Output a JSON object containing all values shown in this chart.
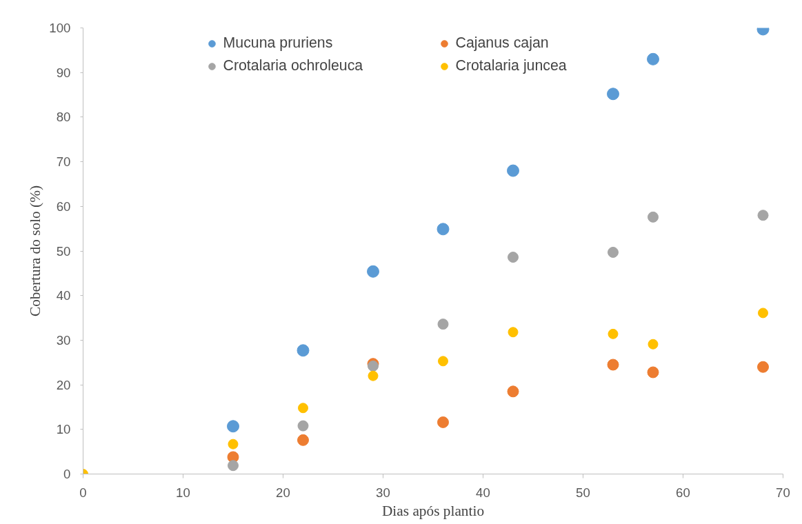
{
  "chart_data": {
    "type": "scatter",
    "xlabel": "Dias após plantio",
    "ylabel": "Cobertura do solo (%)",
    "x": [
      0,
      15,
      22,
      29,
      36,
      43,
      53,
      57,
      68
    ],
    "series": [
      {
        "name": "Mucuna pruriens",
        "color": "#5b9bd5",
        "values": [
          null,
          10.7,
          27.7,
          45.4,
          54.9,
          68.0,
          85.2,
          93.0,
          99.7
        ]
      },
      {
        "name": "Cajanus cajan",
        "color": "#ed7d31",
        "values": [
          null,
          3.8,
          7.6,
          24.7,
          11.6,
          18.5,
          24.5,
          22.8,
          24.0
        ]
      },
      {
        "name": "Crotalaria ochroleuca",
        "color": "#a5a5a5",
        "values": [
          null,
          1.9,
          10.8,
          24.2,
          33.6,
          48.6,
          49.7,
          57.6,
          58.0
        ]
      },
      {
        "name": "Crotalaria juncea",
        "color": "#ffc000",
        "values": [
          0,
          6.7,
          14.8,
          22.0,
          25.3,
          31.8,
          31.4,
          29.1,
          36.1
        ]
      }
    ],
    "xlim": [
      0,
      70
    ],
    "xticks": [
      0,
      10,
      20,
      30,
      40,
      50,
      60,
      70
    ],
    "ylim": [
      0,
      100
    ],
    "yticks": [
      0,
      10,
      20,
      30,
      40,
      50,
      60,
      70,
      80,
      90,
      100
    ],
    "grid": false,
    "legend": "top",
    "marker": "circle"
  }
}
